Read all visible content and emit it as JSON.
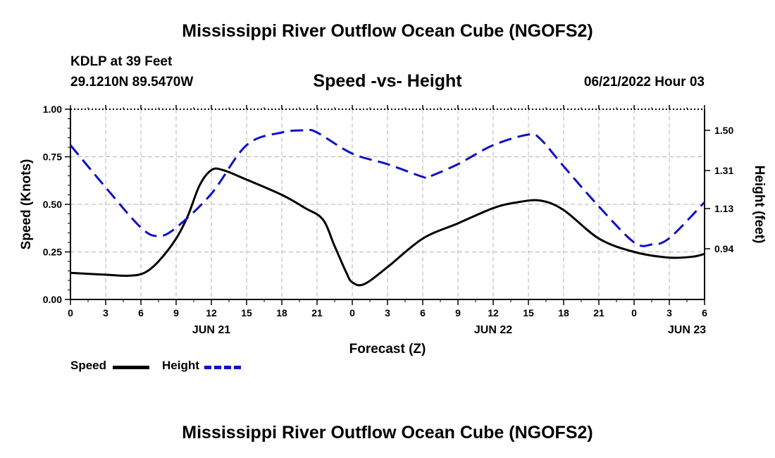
{
  "header": {
    "title": "Mississippi River Outflow Ocean Cube (NGOFS2)",
    "station": "KDLP at 39 Feet",
    "coords": "29.1210N  89.5470W",
    "date": "06/21/2022 Hour 03"
  },
  "footer": {
    "title": "Mississippi River Outflow Ocean Cube (NGOFS2)"
  },
  "colors": {
    "speed": "#000000",
    "height": "#1010c8",
    "grid": "#b4b4b4"
  },
  "chart_data": {
    "type": "line",
    "title": "Speed -vs- Height",
    "xlabel": "Forecast (Z)",
    "ylabel_left": "Speed (Knots)",
    "ylabel_right": "Height (feet)",
    "x_range_hours": [
      0,
      54
    ],
    "x_tick_step_hours": 1.5,
    "x_labeled_ticks": [
      {
        "h": 0,
        "label": "0"
      },
      {
        "h": 3,
        "label": "3"
      },
      {
        "h": 6,
        "label": "6"
      },
      {
        "h": 9,
        "label": "9"
      },
      {
        "h": 12,
        "label": "12"
      },
      {
        "h": 15,
        "label": "15"
      },
      {
        "h": 18,
        "label": "18"
      },
      {
        "h": 21,
        "label": "21"
      },
      {
        "h": 24,
        "label": "0"
      },
      {
        "h": 27,
        "label": "3"
      },
      {
        "h": 30,
        "label": "6"
      },
      {
        "h": 33,
        "label": "9"
      },
      {
        "h": 36,
        "label": "12"
      },
      {
        "h": 39,
        "label": "15"
      },
      {
        "h": 42,
        "label": "18"
      },
      {
        "h": 45,
        "label": "21"
      },
      {
        "h": 48,
        "label": "0"
      },
      {
        "h": 51,
        "label": "3"
      },
      {
        "h": 54,
        "label": "6"
      }
    ],
    "day_labels": [
      {
        "h": 12,
        "label": "JUN 21"
      },
      {
        "h": 36,
        "label": "JUN 22"
      },
      {
        "h": 52.5,
        "label": "JUN 23"
      }
    ],
    "y_left": {
      "min": 0,
      "max": 1,
      "ticks": [
        0,
        0.25,
        0.5,
        0.75,
        1.0
      ],
      "labels": [
        "0.00",
        "0.25",
        "0.50",
        "0.75",
        "1.00"
      ]
    },
    "y_right": {
      "min": 0.7,
      "max": 1.6,
      "ticks": [
        0.94,
        1.13,
        1.31,
        1.5
      ],
      "labels": [
        "0.94",
        "1.13",
        "1.31",
        "1.50"
      ]
    },
    "series": [
      {
        "name": "Speed",
        "axis": "left",
        "style": "solid",
        "x": [
          0,
          3,
          5,
          6.3,
          7.5,
          9,
          10,
          11,
          12,
          13,
          15,
          18,
          20,
          21.5,
          22.5,
          23.5,
          24,
          25,
          27,
          30,
          33,
          36,
          38,
          40,
          42,
          45,
          48,
          51,
          53,
          54
        ],
        "y": [
          0.14,
          0.13,
          0.125,
          0.14,
          0.2,
          0.32,
          0.44,
          0.6,
          0.68,
          0.68,
          0.63,
          0.55,
          0.48,
          0.42,
          0.28,
          0.14,
          0.09,
          0.08,
          0.17,
          0.32,
          0.4,
          0.48,
          0.51,
          0.52,
          0.47,
          0.32,
          0.25,
          0.22,
          0.225,
          0.24
        ]
      },
      {
        "name": "Height",
        "axis": "right",
        "style": "dashed",
        "x": [
          0,
          3,
          6,
          7.5,
          9,
          12,
          15,
          18,
          20,
          21,
          24,
          27,
          30,
          30.5,
          33,
          36,
          39,
          40,
          42,
          45,
          48,
          49.5,
          51,
          54
        ],
        "y": [
          1.43,
          1.23,
          1.04,
          1.0,
          1.04,
          1.2,
          1.43,
          1.49,
          1.5,
          1.49,
          1.39,
          1.34,
          1.28,
          1.28,
          1.34,
          1.43,
          1.48,
          1.46,
          1.33,
          1.14,
          0.97,
          0.96,
          0.99,
          1.16
        ]
      }
    ],
    "legend": [
      {
        "name": "Speed",
        "style": "solid"
      },
      {
        "name": "Height",
        "style": "dashed"
      }
    ]
  }
}
